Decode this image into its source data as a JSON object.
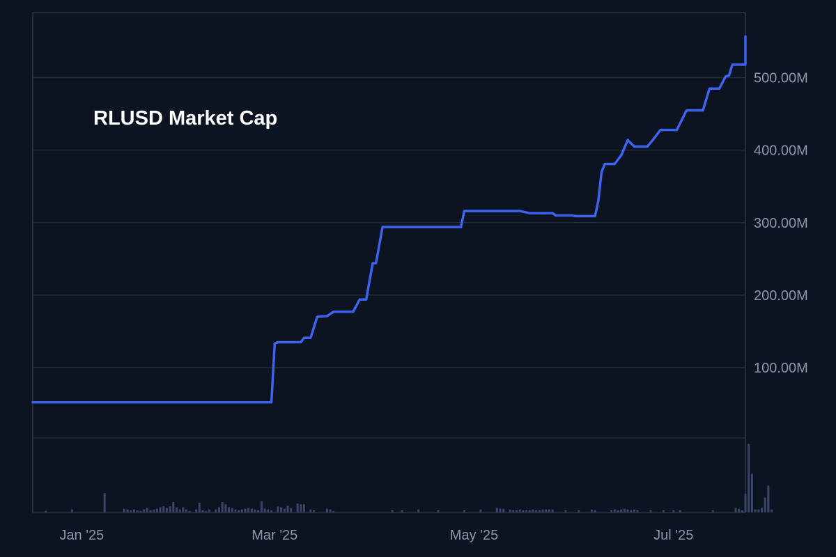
{
  "chart_data": {
    "type": "line",
    "title": "RLUSD Market Cap",
    "xlabel": "",
    "ylabel": "",
    "x_range": [
      "2024-12-17",
      "2025-07-23"
    ],
    "ylim": [
      -100000000,
      590000000
    ],
    "y_ticks": [
      {
        "value": 100000000,
        "label": "100.00M"
      },
      {
        "value": 200000000,
        "label": "200.00M"
      },
      {
        "value": 300000000,
        "label": "300.00M"
      },
      {
        "value": 400000000,
        "label": "400.00M"
      },
      {
        "value": 500000000,
        "label": "500.00M"
      }
    ],
    "x_ticks": [
      {
        "value": "2025-01-01",
        "label": "Jan '25"
      },
      {
        "value": "2025-03-01",
        "label": "Mar '25"
      },
      {
        "value": "2025-05-01",
        "label": "May '25"
      },
      {
        "value": "2025-07-01",
        "label": "Jul '25"
      }
    ],
    "grid": true,
    "legend": "none",
    "colors": {
      "background": "#0c1321",
      "line": "#3d63f0",
      "volume": "#39466a",
      "grid": "#2a3446",
      "axis": "#3c4658",
      "tick_text": "#8d97ab",
      "title_text": "#ffffff"
    },
    "series": [
      {
        "points": [
          [
            "2024-12-17",
            52000000
          ],
          [
            "2025-01-01",
            52000000
          ],
          [
            "2025-02-01",
            52000000
          ],
          [
            "2025-02-28",
            52000000
          ],
          [
            "2025-03-01",
            133000000
          ],
          [
            "2025-03-02",
            135000000
          ],
          [
            "2025-03-09",
            135000000
          ],
          [
            "2025-03-10",
            141000000
          ],
          [
            "2025-03-12",
            141000000
          ],
          [
            "2025-03-14",
            170000000
          ],
          [
            "2025-03-17",
            171000000
          ],
          [
            "2025-03-19",
            177000000
          ],
          [
            "2025-03-25",
            177000000
          ],
          [
            "2025-03-27",
            194000000
          ],
          [
            "2025-03-29",
            194000000
          ],
          [
            "2025-03-31",
            244000000
          ],
          [
            "2025-04-01",
            244000000
          ],
          [
            "2025-04-03",
            294000000
          ],
          [
            "2025-04-10",
            294000000
          ],
          [
            "2025-04-20",
            294000000
          ],
          [
            "2025-04-27",
            294000000
          ],
          [
            "2025-04-28",
            316000000
          ],
          [
            "2025-05-05",
            316000000
          ],
          [
            "2025-05-15",
            316000000
          ],
          [
            "2025-05-18",
            313000000
          ],
          [
            "2025-05-25",
            313000000
          ],
          [
            "2025-05-26",
            310000000
          ],
          [
            "2025-05-31",
            310000000
          ],
          [
            "2025-06-01",
            309000000
          ],
          [
            "2025-06-07",
            309000000
          ],
          [
            "2025-06-08",
            330000000
          ],
          [
            "2025-06-09",
            370000000
          ],
          [
            "2025-06-10",
            381000000
          ],
          [
            "2025-06-13",
            381000000
          ],
          [
            "2025-06-15",
            393000000
          ],
          [
            "2025-06-17",
            414000000
          ],
          [
            "2025-06-19",
            405000000
          ],
          [
            "2025-06-23",
            405000000
          ],
          [
            "2025-06-25",
            416000000
          ],
          [
            "2025-06-27",
            428000000
          ],
          [
            "2025-07-02",
            428000000
          ],
          [
            "2025-07-05",
            455000000
          ],
          [
            "2025-07-10",
            455000000
          ],
          [
            "2025-07-12",
            485000000
          ],
          [
            "2025-07-15",
            485000000
          ],
          [
            "2025-07-17",
            502000000
          ],
          [
            "2025-07-18",
            503000000
          ],
          [
            "2025-07-19",
            518000000
          ],
          [
            "2025-07-23",
            518000000
          ],
          [
            "2025-07-24",
            528000000
          ],
          [
            "2025-07-26",
            528000000
          ],
          [
            "2025-07-27",
            533000000
          ],
          [
            "2025-07-28",
            533000000
          ],
          [
            "2025-07-29",
            557000000
          ],
          [
            "2025-07-31",
            557000000
          ]
        ]
      }
    ],
    "volume": {
      "type": "bar",
      "max_value": 100,
      "bars": [
        [
          "2024-12-21",
          2
        ],
        [
          "2024-12-29",
          4
        ],
        [
          "2025-01-08",
          26
        ],
        [
          "2025-01-14",
          5
        ],
        [
          "2025-01-15",
          4
        ],
        [
          "2025-01-16",
          3
        ],
        [
          "2025-01-17",
          4
        ],
        [
          "2025-01-18",
          3
        ],
        [
          "2025-01-19",
          2
        ],
        [
          "2025-01-20",
          4
        ],
        [
          "2025-01-21",
          6
        ],
        [
          "2025-01-22",
          3
        ],
        [
          "2025-01-23",
          4
        ],
        [
          "2025-01-24",
          5
        ],
        [
          "2025-01-25",
          7
        ],
        [
          "2025-01-26",
          8
        ],
        [
          "2025-01-27",
          6
        ],
        [
          "2025-01-28",
          8
        ],
        [
          "2025-01-29",
          14
        ],
        [
          "2025-01-30",
          7
        ],
        [
          "2025-01-31",
          4
        ],
        [
          "2025-02-01",
          7
        ],
        [
          "2025-02-02",
          4
        ],
        [
          "2025-02-03",
          2
        ],
        [
          "2025-02-05",
          4
        ],
        [
          "2025-02-06",
          13
        ],
        [
          "2025-02-07",
          3
        ],
        [
          "2025-02-08",
          2
        ],
        [
          "2025-02-09",
          4
        ],
        [
          "2025-02-11",
          4
        ],
        [
          "2025-02-12",
          7
        ],
        [
          "2025-02-13",
          14
        ],
        [
          "2025-02-14",
          11
        ],
        [
          "2025-02-15",
          7
        ],
        [
          "2025-02-16",
          6
        ],
        [
          "2025-02-17",
          4
        ],
        [
          "2025-02-18",
          3
        ],
        [
          "2025-02-19",
          4
        ],
        [
          "2025-02-20",
          5
        ],
        [
          "2025-02-21",
          6
        ],
        [
          "2025-02-22",
          5
        ],
        [
          "2025-02-23",
          4
        ],
        [
          "2025-02-24",
          3
        ],
        [
          "2025-02-25",
          15
        ],
        [
          "2025-02-26",
          5
        ],
        [
          "2025-02-27",
          4
        ],
        [
          "2025-02-28",
          3
        ],
        [
          "2025-03-02",
          8
        ],
        [
          "2025-03-03",
          7
        ],
        [
          "2025-03-04",
          5
        ],
        [
          "2025-03-05",
          9
        ],
        [
          "2025-03-06",
          6
        ],
        [
          "2025-03-08",
          12
        ],
        [
          "2025-03-09",
          11
        ],
        [
          "2025-03-10",
          11
        ],
        [
          "2025-03-12",
          4
        ],
        [
          "2025-03-13",
          3
        ],
        [
          "2025-03-17",
          5
        ],
        [
          "2025-03-18",
          4
        ],
        [
          "2025-03-19",
          2
        ],
        [
          "2025-04-06",
          3
        ],
        [
          "2025-04-09",
          3
        ],
        [
          "2025-04-14",
          4
        ],
        [
          "2025-04-20",
          3
        ],
        [
          "2025-04-28",
          3
        ],
        [
          "2025-05-03",
          4
        ],
        [
          "2025-05-08",
          6
        ],
        [
          "2025-05-09",
          5
        ],
        [
          "2025-05-10",
          5
        ],
        [
          "2025-05-12",
          4
        ],
        [
          "2025-05-13",
          3
        ],
        [
          "2025-05-14",
          3
        ],
        [
          "2025-05-15",
          4
        ],
        [
          "2025-05-16",
          3
        ],
        [
          "2025-05-17",
          3
        ],
        [
          "2025-05-18",
          3
        ],
        [
          "2025-05-19",
          4
        ],
        [
          "2025-05-20",
          3
        ],
        [
          "2025-05-21",
          3
        ],
        [
          "2025-05-22",
          4
        ],
        [
          "2025-05-23",
          4
        ],
        [
          "2025-05-24",
          4
        ],
        [
          "2025-05-25",
          4
        ],
        [
          "2025-05-29",
          3
        ],
        [
          "2025-06-02",
          3
        ],
        [
          "2025-06-06",
          4
        ],
        [
          "2025-06-07",
          3
        ],
        [
          "2025-06-12",
          3
        ],
        [
          "2025-06-13",
          4
        ],
        [
          "2025-06-14",
          3
        ],
        [
          "2025-06-15",
          4
        ],
        [
          "2025-06-16",
          5
        ],
        [
          "2025-06-17",
          4
        ],
        [
          "2025-06-18",
          3
        ],
        [
          "2025-06-19",
          4
        ],
        [
          "2025-06-20",
          3
        ],
        [
          "2025-06-24",
          3
        ],
        [
          "2025-06-28",
          3
        ],
        [
          "2025-07-01",
          3
        ],
        [
          "2025-07-03",
          3
        ],
        [
          "2025-07-13",
          3
        ],
        [
          "2025-07-20",
          6
        ],
        [
          "2025-07-21",
          5
        ],
        [
          "2025-07-22",
          3
        ],
        [
          "2025-07-23",
          25
        ],
        [
          "2025-07-24",
          92
        ],
        [
          "2025-07-25",
          52
        ],
        [
          "2025-07-26",
          4
        ],
        [
          "2025-07-27",
          4
        ],
        [
          "2025-07-28",
          6
        ],
        [
          "2025-07-29",
          20
        ],
        [
          "2025-07-30",
          36
        ],
        [
          "2025-07-31",
          4
        ]
      ]
    }
  }
}
